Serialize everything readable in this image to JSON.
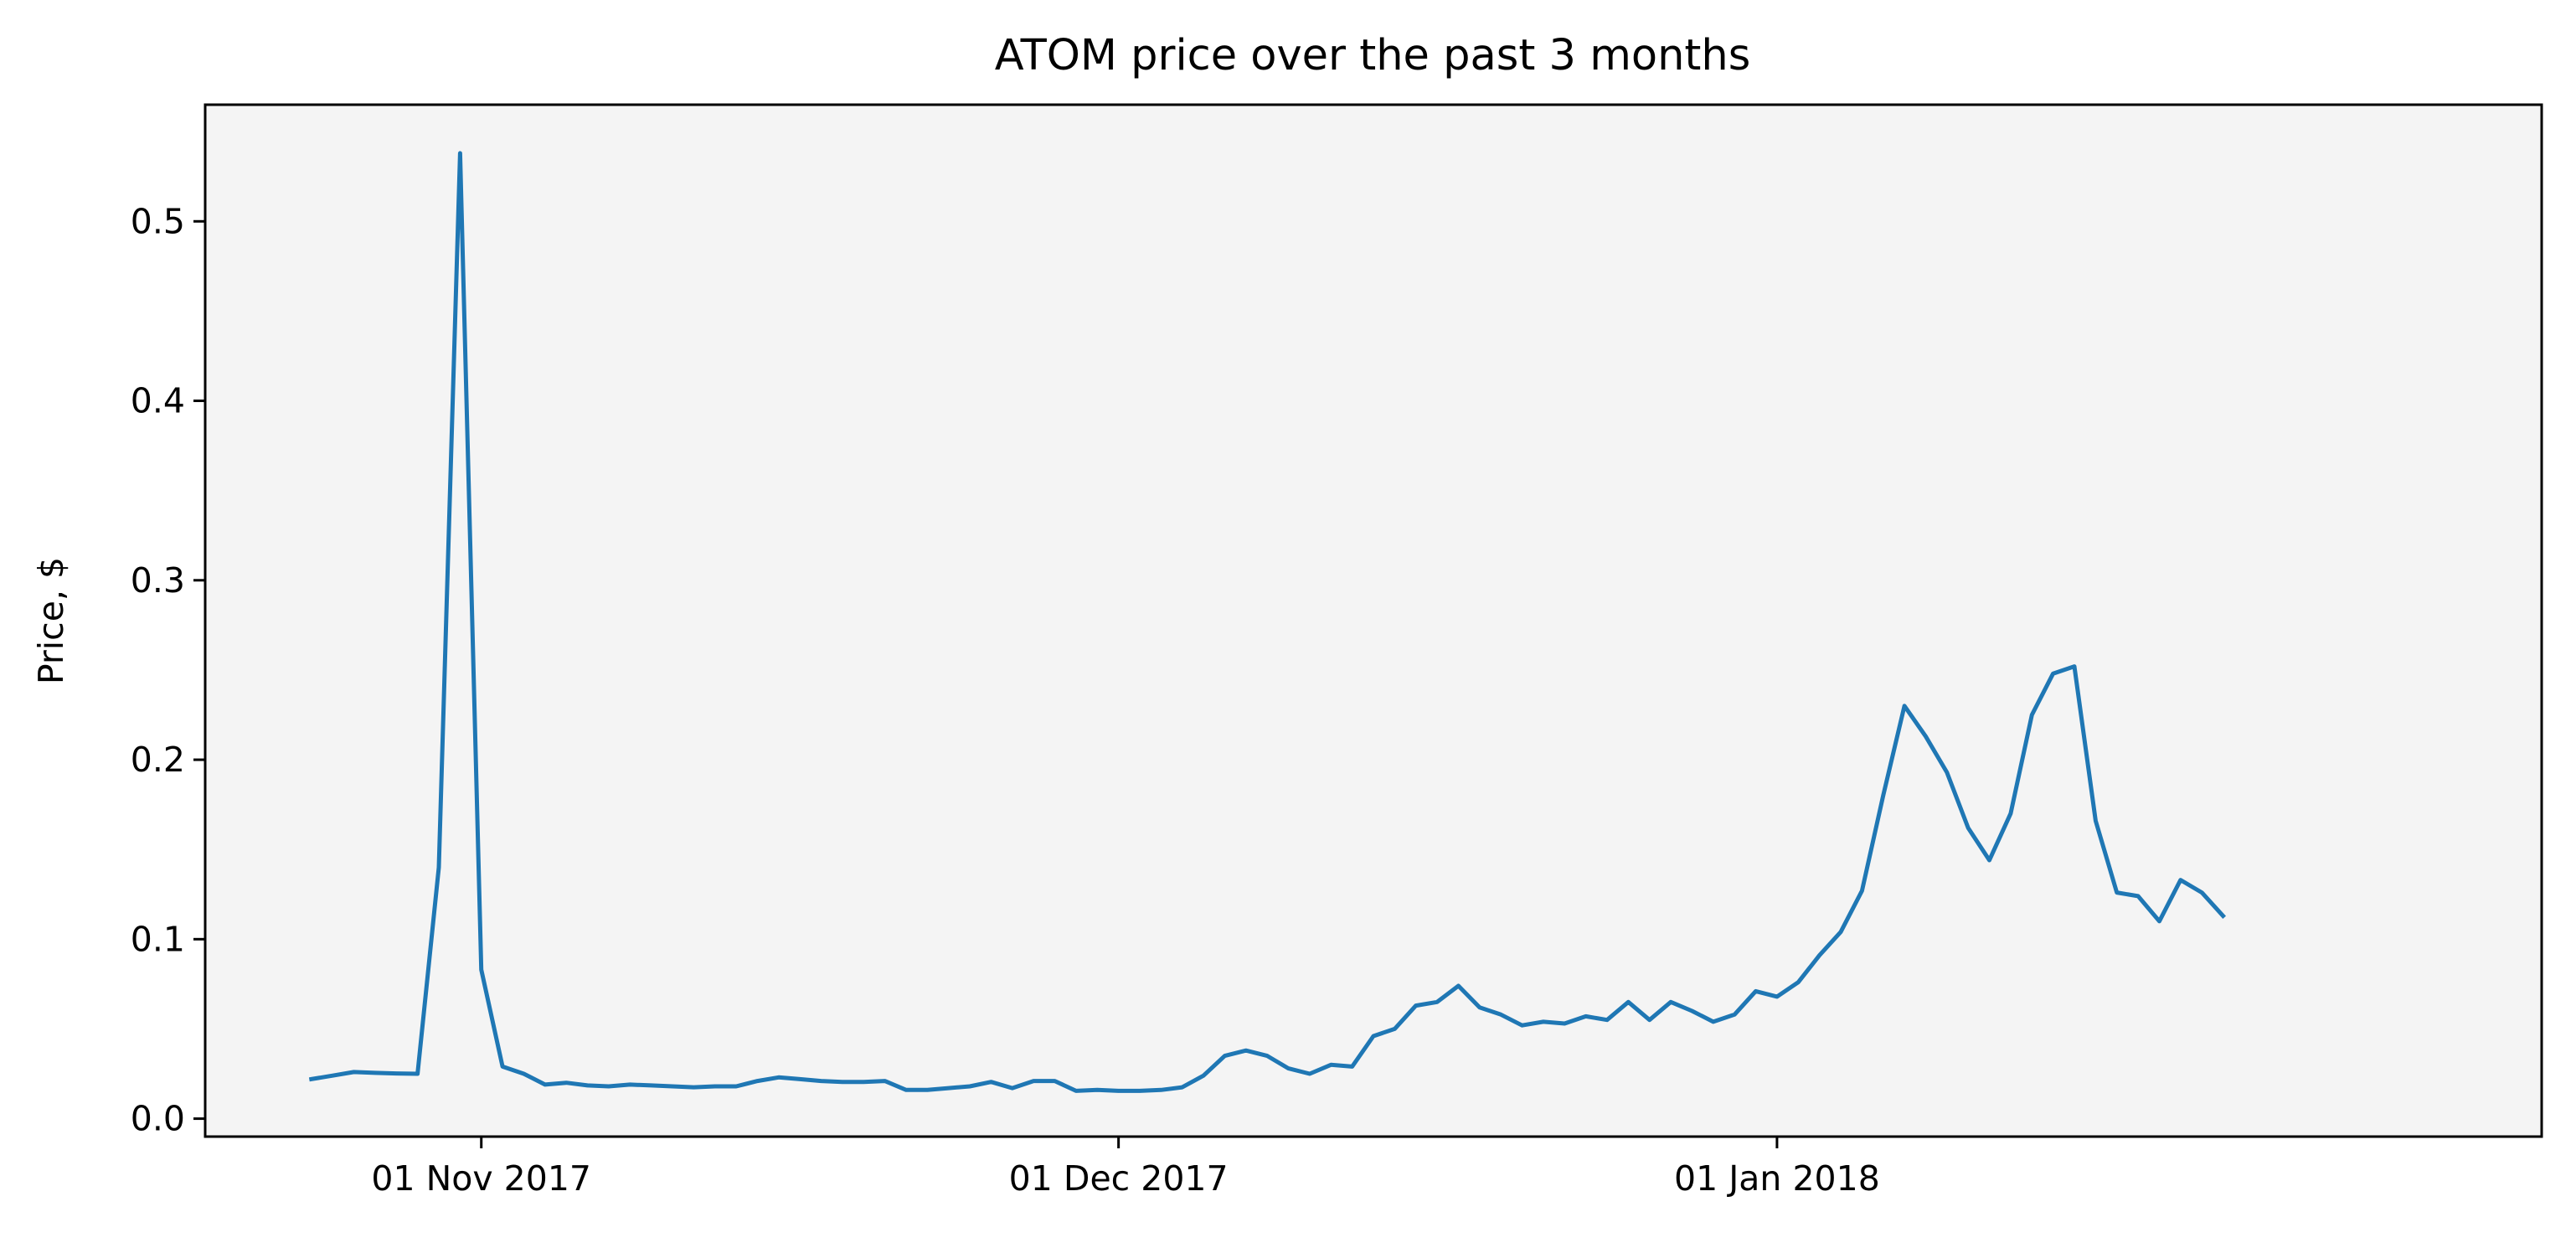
{
  "chart_data": {
    "type": "line",
    "title": "ATOM price over the past 3 months",
    "xlabel": "",
    "ylabel": "Price, $",
    "grid": false,
    "legend": "none",
    "colors": {
      "line": "#1f77b4",
      "plot_background": "#f4f4f4",
      "axes": "#000000"
    },
    "xlim": [
      "2017-10-19",
      "2018-02-06"
    ],
    "ylim": [
      -0.01,
      0.565
    ],
    "xticks": [
      {
        "date": "2017-11-01",
        "label": "01 Nov 2017"
      },
      {
        "date": "2017-12-01",
        "label": "01 Dec 2017"
      },
      {
        "date": "2018-01-01",
        "label": "01 Jan 2018"
      }
    ],
    "yticks": [
      {
        "value": 0.0,
        "label": "0.0"
      },
      {
        "value": 0.1,
        "label": "0.1"
      },
      {
        "value": 0.2,
        "label": "0.2"
      },
      {
        "value": 0.3,
        "label": "0.3"
      },
      {
        "value": 0.4,
        "label": "0.4"
      },
      {
        "value": 0.5,
        "label": "0.5"
      }
    ],
    "series": [
      {
        "points": [
          [
            "2017-10-24",
            0.022
          ],
          [
            "2017-10-25",
            0.024
          ],
          [
            "2017-10-26",
            0.026
          ],
          [
            "2017-10-27",
            0.0255
          ],
          [
            "2017-10-28",
            0.0252
          ],
          [
            "2017-10-29",
            0.025
          ],
          [
            "2017-10-30",
            0.14
          ],
          [
            "2017-10-31",
            0.538
          ],
          [
            "2017-11-01",
            0.083
          ],
          [
            "2017-11-02",
            0.029
          ],
          [
            "2017-11-03",
            0.025
          ],
          [
            "2017-11-04",
            0.019
          ],
          [
            "2017-11-05",
            0.02
          ],
          [
            "2017-11-06",
            0.0185
          ],
          [
            "2017-11-07",
            0.018
          ],
          [
            "2017-11-08",
            0.019
          ],
          [
            "2017-11-09",
            0.0185
          ],
          [
            "2017-11-10",
            0.018
          ],
          [
            "2017-11-11",
            0.0175
          ],
          [
            "2017-11-12",
            0.018
          ],
          [
            "2017-11-13",
            0.018
          ],
          [
            "2017-11-14",
            0.021
          ],
          [
            "2017-11-15",
            0.023
          ],
          [
            "2017-11-16",
            0.022
          ],
          [
            "2017-11-17",
            0.021
          ],
          [
            "2017-11-18",
            0.0205
          ],
          [
            "2017-11-19",
            0.0205
          ],
          [
            "2017-11-20",
            0.021
          ],
          [
            "2017-11-21",
            0.016
          ],
          [
            "2017-11-22",
            0.016
          ],
          [
            "2017-11-23",
            0.017
          ],
          [
            "2017-11-24",
            0.018
          ],
          [
            "2017-11-25",
            0.0205
          ],
          [
            "2017-11-26",
            0.017
          ],
          [
            "2017-11-27",
            0.021
          ],
          [
            "2017-11-28",
            0.021
          ],
          [
            "2017-11-29",
            0.0155
          ],
          [
            "2017-11-30",
            0.016
          ],
          [
            "2017-12-01",
            0.0155
          ],
          [
            "2017-12-02",
            0.0155
          ],
          [
            "2017-12-03",
            0.016
          ],
          [
            "2017-12-04",
            0.0175
          ],
          [
            "2017-12-05",
            0.024
          ],
          [
            "2017-12-06",
            0.035
          ],
          [
            "2017-12-07",
            0.038
          ],
          [
            "2017-12-08",
            0.035
          ],
          [
            "2017-12-09",
            0.028
          ],
          [
            "2017-12-10",
            0.025
          ],
          [
            "2017-12-11",
            0.03
          ],
          [
            "2017-12-12",
            0.029
          ],
          [
            "2017-12-13",
            0.046
          ],
          [
            "2017-12-14",
            0.05
          ],
          [
            "2017-12-15",
            0.063
          ],
          [
            "2017-12-16",
            0.065
          ],
          [
            "2017-12-17",
            0.074
          ],
          [
            "2017-12-18",
            0.062
          ],
          [
            "2017-12-19",
            0.058
          ],
          [
            "2017-12-20",
            0.052
          ],
          [
            "2017-12-21",
            0.054
          ],
          [
            "2017-12-22",
            0.053
          ],
          [
            "2017-12-23",
            0.057
          ],
          [
            "2017-12-24",
            0.055
          ],
          [
            "2017-12-25",
            0.065
          ],
          [
            "2017-12-26",
            0.055
          ],
          [
            "2017-12-27",
            0.065
          ],
          [
            "2017-12-28",
            0.06
          ],
          [
            "2017-12-29",
            0.054
          ],
          [
            "2017-12-30",
            0.058
          ],
          [
            "2017-12-31",
            0.071
          ],
          [
            "2018-01-01",
            0.068
          ],
          [
            "2018-01-02",
            0.076
          ],
          [
            "2018-01-03",
            0.091
          ],
          [
            "2018-01-04",
            0.104
          ],
          [
            "2018-01-05",
            0.127
          ],
          [
            "2018-01-06",
            0.18
          ],
          [
            "2018-01-07",
            0.23
          ],
          [
            "2018-01-08",
            0.213
          ],
          [
            "2018-01-09",
            0.193
          ],
          [
            "2018-01-10",
            0.162
          ],
          [
            "2018-01-11",
            0.144
          ],
          [
            "2018-01-12",
            0.17
          ],
          [
            "2018-01-13",
            0.225
          ],
          [
            "2018-01-14",
            0.248
          ],
          [
            "2018-01-15",
            0.252
          ],
          [
            "2018-01-16",
            0.166
          ],
          [
            "2018-01-17",
            0.126
          ],
          [
            "2018-01-18",
            0.124
          ],
          [
            "2018-01-19",
            0.11
          ],
          [
            "2018-01-20",
            0.133
          ],
          [
            "2018-01-21",
            0.126
          ],
          [
            "2018-01-22",
            0.113
          ]
        ]
      }
    ]
  }
}
